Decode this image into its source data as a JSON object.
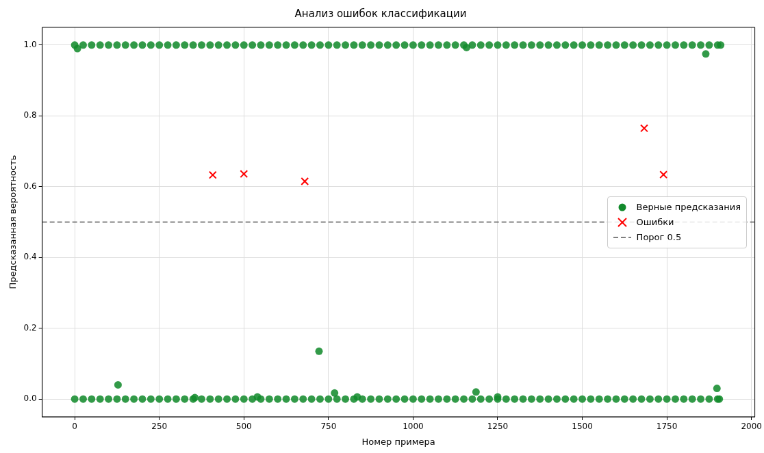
{
  "chart_data": {
    "type": "scatter",
    "title": "Анализ ошибок классификации",
    "xlabel": "Номер примера",
    "ylabel": "Предсказанная вероятность",
    "xlim": [
      -96,
      2010
    ],
    "ylim": [
      -0.05,
      1.05
    ],
    "xticks": [
      0,
      250,
      500,
      750,
      1000,
      1250,
      1500,
      1750,
      2000
    ],
    "yticks": [
      {
        "value": 0,
        "label": "0.0"
      },
      {
        "value": 0.2,
        "label": "0.2"
      },
      {
        "value": 0.4,
        "label": "0.4"
      },
      {
        "value": 0.6,
        "label": "0.6"
      },
      {
        "value": 0.8,
        "label": "0.8"
      },
      {
        "value": 1,
        "label": "1.0"
      }
    ],
    "grid": true,
    "legend": "center right",
    "series": [
      {
        "name": "Верные предсказания",
        "color": "#128a2c",
        "marker": "circle",
        "x": [
          0,
          25,
          50,
          75,
          100,
          125,
          150,
          175,
          200,
          225,
          250,
          275,
          300,
          325,
          350,
          375,
          400,
          425,
          450,
          475,
          500,
          525,
          550,
          575,
          600,
          625,
          650,
          675,
          700,
          725,
          750,
          775,
          800,
          825,
          850,
          875,
          900,
          925,
          950,
          975,
          1000,
          1025,
          1050,
          1075,
          1100,
          1125,
          1150,
          1175,
          1200,
          1225,
          1250,
          1275,
          1300,
          1325,
          1350,
          1375,
          1400,
          1425,
          1450,
          1475,
          1500,
          1525,
          1550,
          1575,
          1600,
          1625,
          1650,
          1675,
          1700,
          1725,
          1750,
          1775,
          1800,
          1825,
          1850,
          1875,
          1900,
          1909,
          0,
          25,
          50,
          75,
          100,
          125,
          150,
          175,
          200,
          225,
          250,
          275,
          300,
          325,
          350,
          375,
          400,
          425,
          450,
          475,
          500,
          525,
          550,
          575,
          600,
          625,
          650,
          675,
          700,
          725,
          750,
          775,
          800,
          825,
          850,
          875,
          900,
          925,
          950,
          975,
          1000,
          1025,
          1050,
          1075,
          1100,
          1125,
          1150,
          1175,
          1200,
          1225,
          1250,
          1275,
          1300,
          1325,
          1350,
          1375,
          1400,
          1425,
          1450,
          1475,
          1500,
          1525,
          1550,
          1575,
          1600,
          1625,
          1650,
          1675,
          1700,
          1725,
          1750,
          1775,
          1800,
          1825,
          1850,
          1875,
          1900,
          1905,
          8,
          128,
          355,
          540,
          722,
          768,
          835,
          1158,
          1186,
          1250,
          1865,
          1898
        ],
        "values": [
          1,
          1,
          1,
          1,
          1,
          1,
          1,
          1,
          1,
          1,
          1,
          1,
          1,
          1,
          1,
          1,
          1,
          1,
          1,
          1,
          1,
          1,
          1,
          1,
          1,
          1,
          1,
          1,
          1,
          1,
          1,
          1,
          1,
          1,
          1,
          1,
          1,
          1,
          1,
          1,
          1,
          1,
          1,
          1,
          1,
          1,
          1,
          1,
          1,
          1,
          1,
          1,
          1,
          1,
          1,
          1,
          1,
          1,
          1,
          1,
          1,
          1,
          1,
          1,
          1,
          1,
          1,
          1,
          1,
          1,
          1,
          1,
          1,
          1,
          1,
          1,
          1,
          1,
          0,
          0,
          0,
          0,
          0,
          0,
          0,
          0,
          0,
          0,
          0,
          0,
          0,
          0,
          0,
          0,
          0,
          0,
          0,
          0,
          0,
          0,
          0,
          0,
          0,
          0,
          0,
          0,
          0,
          0,
          0,
          0,
          0,
          0,
          0,
          0,
          0,
          0,
          0,
          0,
          0,
          0,
          0,
          0,
          0,
          0,
          0,
          0,
          0,
          0,
          0,
          0,
          0,
          0,
          0,
          0,
          0,
          0,
          0,
          0,
          0,
          0,
          0,
          0,
          0,
          0,
          0,
          0,
          0,
          0,
          0,
          0,
          0,
          0,
          0,
          0,
          0,
          0,
          0.99,
          0.04,
          0.004,
          0.006,
          0.135,
          0.017,
          0.006,
          0.993,
          0.02,
          0.006,
          0.975,
          0.03
        ]
      },
      {
        "name": "Ошибки",
        "color": "#ff0000",
        "marker": "cross",
        "x": [
          408,
          500,
          680,
          1683,
          1740
        ],
        "values": [
          0.633,
          0.636,
          0.615,
          0.765,
          0.634
        ]
      }
    ],
    "ref_lines": [
      {
        "axis": "y",
        "value": 0.5,
        "label": "Порог 0.5",
        "color": "#555555",
        "line_style": "dashed"
      }
    ]
  }
}
